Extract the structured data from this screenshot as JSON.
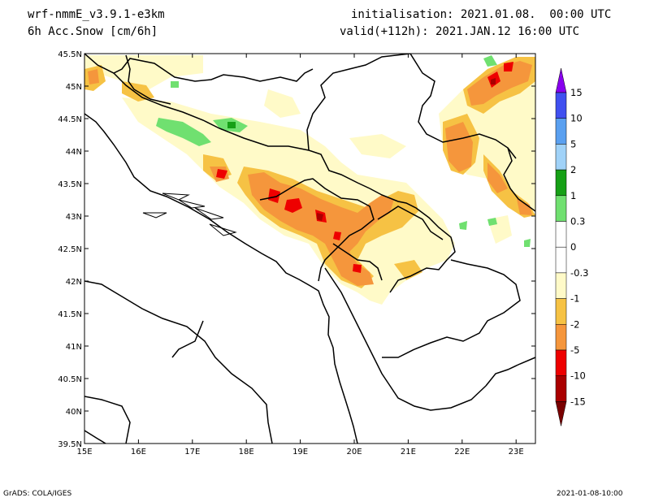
{
  "header": {
    "model": "wrf-nmmE_v3.9.1-e3km",
    "variable": "6h Acc.Snow [cm/6h]",
    "initialisation": "initialisation: 2021.01.08.  00:00 UTC",
    "valid": "valid(+112h): 2021.JAN.12 16:00 UTC"
  },
  "footer": {
    "left": "GrADS: COLA/IGES",
    "right": "2021-01-08-10:00"
  },
  "map": {
    "lat_labels": [
      "45.5N",
      "45N",
      "44.5N",
      "44N",
      "43.5N",
      "43N",
      "42.5N",
      "42N",
      "41.5N",
      "41N",
      "40.5N",
      "40N",
      "39.5N"
    ],
    "lon_labels": [
      "15E",
      "16E",
      "17E",
      "18E",
      "19E",
      "20E",
      "21E",
      "22E",
      "23E"
    ]
  },
  "legend": {
    "labels": [
      "15",
      "10",
      "5",
      "2",
      "1",
      "0.3",
      "0",
      "-0.3",
      "-1",
      "-2",
      "-5",
      "-10",
      "-15"
    ],
    "colors": [
      "#8800ee",
      "#4050f0",
      "#5aa0f0",
      "#a0d2f8",
      "#16a016",
      "#70e070",
      "#ffffff",
      "#ffffff",
      "#fffac8",
      "#f6c244",
      "#f5963c",
      "#ee0000",
      "#aa0000",
      "#7a0000"
    ]
  }
}
